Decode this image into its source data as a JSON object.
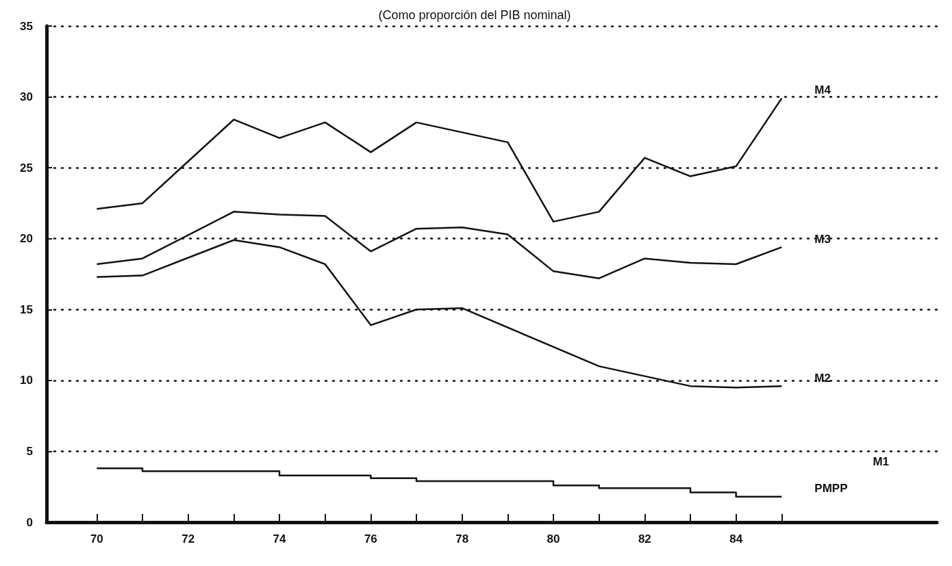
{
  "chart_data": {
    "type": "line",
    "title": "(Como proporción del PIB nominal)",
    "xlim": [
      68.9,
      88.4
    ],
    "xticks": [
      70,
      {
        "value": 71,
        "label": null
      },
      72,
      {
        "value": 73,
        "label": null
      },
      74,
      {
        "value": 75,
        "label": null
      },
      76,
      {
        "value": 77,
        "label": null
      },
      78,
      {
        "value": 79,
        "label": null
      },
      80,
      {
        "value": 81,
        "label": null
      },
      82,
      {
        "value": 83,
        "label": null
      },
      84,
      {
        "value": 85,
        "label": null
      }
    ],
    "ylim": [
      0,
      35
    ],
    "yticks": [
      0,
      5,
      10,
      15,
      20,
      25,
      30,
      35
    ],
    "grid": "y",
    "marker": "none",
    "line_style": "solid",
    "legend": false,
    "series": [
      {
        "name": "M4",
        "color": "#111111",
        "x": [
          70,
          71,
          73,
          74,
          75,
          76,
          77,
          79,
          80,
          81,
          82,
          83,
          84,
          85
        ],
        "values": [
          22.1,
          22.5,
          28.4,
          27.1,
          28.2,
          26.1,
          28.2,
          26.8,
          21.2,
          21.9,
          25.7,
          24.4,
          25.1,
          29.9
        ]
      },
      {
        "name": "M3",
        "color": "#111111",
        "x": [
          70,
          71,
          73,
          74,
          75,
          76,
          77,
          78,
          79,
          80,
          81,
          82,
          83,
          84,
          85
        ],
        "values": [
          18.2,
          18.6,
          21.9,
          21.7,
          21.6,
          19.1,
          20.7,
          20.8,
          20.3,
          17.7,
          17.2,
          18.6,
          18.3,
          18.2,
          19.4
        ]
      },
      {
        "name": "M2",
        "color": "#111111",
        "x": [
          70,
          71,
          73,
          74,
          75,
          76,
          77,
          78,
          81,
          83,
          84,
          85
        ],
        "values": [
          17.3,
          17.4,
          19.9,
          19.4,
          18.2,
          13.9,
          15.0,
          15.1,
          11.0,
          9.6,
          9.5,
          9.6
        ]
      },
      {
        "name": "PMPP",
        "type": "step",
        "color": "#111111",
        "x": [
          70,
          71,
          72,
          73,
          74,
          75,
          76,
          77,
          78,
          79,
          80,
          81,
          82,
          83,
          84,
          85
        ],
        "values": [
          3.8,
          3.6,
          3.6,
          3.6,
          3.3,
          3.3,
          3.1,
          2.9,
          2.9,
          2.9,
          2.6,
          2.4,
          2.4,
          2.1,
          1.8,
          1.8
        ]
      }
    ],
    "annotations": [
      "M1"
    ]
  }
}
